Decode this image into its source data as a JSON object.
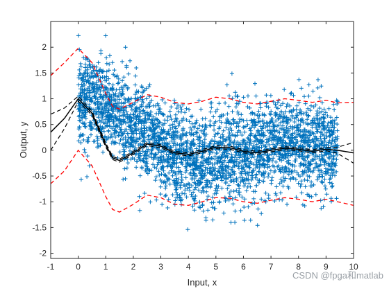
{
  "chart_data": {
    "type": "scatter",
    "title": "",
    "xlabel": "Input, x",
    "ylabel": "Output, y",
    "xlim": [
      -1,
      10
    ],
    "ylim": [
      -2.1,
      2.5
    ],
    "x_ticks": [
      -1,
      0,
      1,
      2,
      3,
      4,
      5,
      6,
      7,
      8,
      9,
      10
    ],
    "y_ticks": [
      -2,
      -1.5,
      -1,
      -0.5,
      0,
      0.5,
      1,
      1.5,
      2
    ],
    "grid": false,
    "legend": "none",
    "points": {
      "name": "",
      "marker": "+",
      "color": "#0072BD",
      "x_range": [
        0,
        9.42
      ],
      "count_approx": 60000,
      "model": "y = sin(x)/x + noise",
      "noise_sd": 0.45
    },
    "mean_curve": {
      "name": "",
      "color": "#000000",
      "style": "solid",
      "x": [
        -1,
        -0.5,
        0,
        0.5,
        1,
        1.25,
        1.5,
        2,
        2.5,
        3,
        3.5,
        4,
        4.5,
        5,
        5.5,
        6,
        6.5,
        7,
        7.5,
        8,
        8.5,
        9,
        9.42,
        10
      ],
      "y": [
        0.35,
        0.62,
        1.0,
        0.72,
        0.1,
        -0.15,
        -0.2,
        -0.05,
        0.12,
        0.08,
        -0.05,
        -0.08,
        -0.02,
        0.06,
        0.05,
        -0.02,
        -0.05,
        0.0,
        0.04,
        0.02,
        -0.02,
        0.02,
        0.0,
        -0.05
      ]
    },
    "confidence_bounds": {
      "color": "#000000",
      "style": "dashed",
      "upper": [
        0.7,
        0.82,
        1.05,
        0.76,
        0.14,
        -0.12,
        -0.17,
        -0.02,
        0.15,
        0.11,
        -0.02,
        -0.05,
        0.01,
        0.09,
        0.08,
        0.01,
        -0.02,
        0.03,
        0.07,
        0.05,
        0.01,
        0.05,
        0.06,
        0.15
      ],
      "lower": [
        0.0,
        0.42,
        0.95,
        0.68,
        0.06,
        -0.18,
        -0.23,
        -0.08,
        0.09,
        0.05,
        -0.08,
        -0.11,
        -0.05,
        0.03,
        0.02,
        -0.05,
        -0.08,
        -0.03,
        0.01,
        -0.01,
        -0.05,
        -0.01,
        -0.06,
        -0.25
      ]
    },
    "prediction_bounds": {
      "color": "#FF0000",
      "style": "dashed",
      "upper": [
        1.45,
        1.7,
        1.98,
        1.7,
        1.1,
        0.85,
        0.8,
        0.93,
        1.08,
        1.03,
        0.93,
        0.9,
        0.95,
        1.03,
        1.0,
        0.93,
        0.9,
        0.95,
        1.0,
        0.97,
        0.93,
        0.97,
        0.92,
        0.93
      ],
      "lower": [
        -0.65,
        -0.4,
        0.0,
        -0.3,
        -0.9,
        -1.15,
        -1.2,
        -1.05,
        -0.87,
        -0.92,
        -1.05,
        -1.07,
        -1.0,
        -0.92,
        -0.93,
        -1.0,
        -1.03,
        -0.97,
        -0.92,
        -0.95,
        -1.0,
        -0.95,
        -1.0,
        -1.07
      ]
    }
  },
  "watermark": "CSDN @fpga和matlab"
}
